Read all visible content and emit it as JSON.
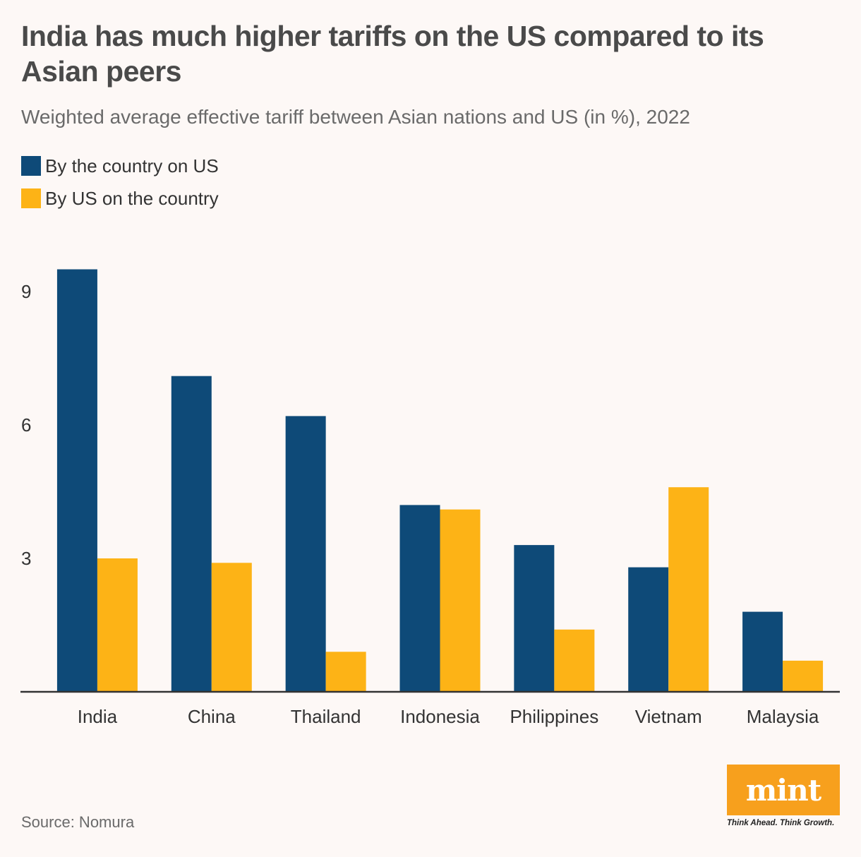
{
  "title": "India has much higher tariffs on the US compared to its Asian peers",
  "subtitle": "Weighted average effective tariff between Asian nations and US (in %), 2022",
  "source": "Source: Nomura",
  "logo": {
    "word": "mint",
    "tagline": "Think Ahead. Think Growth."
  },
  "colors": {
    "country_on_us": "#0e4a78",
    "us_on_country": "#fdb316",
    "background": "#fdf8f6"
  },
  "chart_data": {
    "type": "bar",
    "title": "India has much higher tariffs on the US compared to its Asian peers",
    "subtitle": "Weighted average effective tariff between Asian nations and US (in %), 2022",
    "xlabel": "",
    "ylabel": "",
    "ylim": [
      0,
      10
    ],
    "yticks": [
      3,
      6,
      9
    ],
    "grid": false,
    "legend_placement": "top-left",
    "categories": [
      "India",
      "China",
      "Thailand",
      "Indonesia",
      "Philippines",
      "Vietnam",
      "Malaysia"
    ],
    "series": [
      {
        "name": "By the country on US",
        "values": [
          9.5,
          7.1,
          6.2,
          4.2,
          3.3,
          2.8,
          1.8
        ]
      },
      {
        "name": "By US on the country",
        "values": [
          3.0,
          2.9,
          0.9,
          4.1,
          1.4,
          4.6,
          0.7
        ]
      }
    ]
  }
}
